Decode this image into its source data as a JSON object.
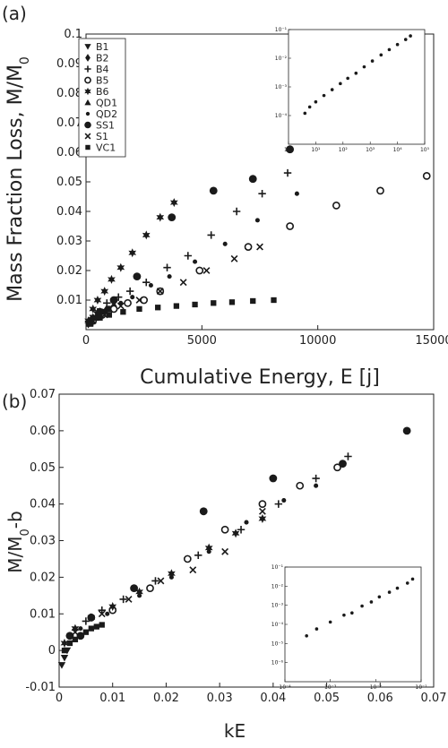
{
  "chart_data": [
    {
      "type": "scatter",
      "panel_label": "(a)",
      "xlabel": "Cumulative Energy, E [j]",
      "ylabel": "Mass Fraction Loss, M/M0",
      "ylabel_parts": {
        "main": "Mass Fraction Loss, M/M",
        "sub": "0"
      },
      "xlim": [
        0,
        15000
      ],
      "ylim": [
        0,
        0.1
      ],
      "xticks": [
        0,
        5000,
        10000,
        15000
      ],
      "xtick_labels": [
        "0",
        "5000",
        "10000",
        "15000"
      ],
      "yticks": [
        0.01,
        0.02,
        0.03,
        0.04,
        0.05,
        0.06,
        0.07,
        0.08,
        0.09,
        0.1
      ],
      "ytick_labels": [
        "0.01",
        "0.02",
        "0.03",
        "0.04",
        "0.05",
        "0.06",
        "0.07",
        "0.08",
        "0.09",
        "0.1"
      ],
      "legend_position": "top-left",
      "series": [
        {
          "name": "B1",
          "marker": "triangle-down",
          "x": [
            100,
            300,
            500,
            800,
            1100
          ],
          "y": [
            0.002,
            0.004,
            0.005,
            0.006,
            0.007
          ]
        },
        {
          "name": "B2",
          "marker": "diamond",
          "x": [
            100,
            300,
            600,
            900,
            1200
          ],
          "y": [
            0.002,
            0.004,
            0.006,
            0.007,
            0.008
          ]
        },
        {
          "name": "B4",
          "marker": "plus",
          "x": [
            200,
            500,
            900,
            1400,
            1900,
            2600,
            3500,
            4400,
            5400,
            6500,
            7600,
            8700
          ],
          "y": [
            0.003,
            0.006,
            0.009,
            0.011,
            0.013,
            0.016,
            0.021,
            0.025,
            0.032,
            0.04,
            0.046,
            0.053
          ]
        },
        {
          "name": "B5",
          "marker": "open-circle",
          "x": [
            300,
            700,
            1200,
            1800,
            2500,
            3200,
            4900,
            7000,
            8800,
            10800,
            12700,
            14700
          ],
          "y": [
            0.003,
            0.005,
            0.007,
            0.009,
            0.01,
            0.013,
            0.02,
            0.028,
            0.035,
            0.042,
            0.047,
            0.052
          ]
        },
        {
          "name": "B6",
          "marker": "star",
          "x": [
            100,
            300,
            500,
            800,
            1100,
            1500,
            2000,
            2600,
            3200,
            3800
          ],
          "y": [
            0.003,
            0.007,
            0.01,
            0.013,
            0.017,
            0.021,
            0.026,
            0.032,
            0.038,
            0.043
          ]
        },
        {
          "name": "QD1",
          "marker": "triangle-up",
          "x": [
            150,
            400,
            700,
            1000
          ],
          "y": [
            0.002,
            0.004,
            0.006,
            0.007
          ]
        },
        {
          "name": "QD2",
          "marker": "small-circle",
          "x": [
            500,
            1000,
            1500,
            2000,
            2800,
            3600,
            4700,
            6000,
            7400,
            9100
          ],
          "y": [
            0.004,
            0.007,
            0.009,
            0.011,
            0.015,
            0.018,
            0.023,
            0.029,
            0.037,
            0.046
          ]
        },
        {
          "name": "SS1",
          "marker": "filled-circle",
          "x": [
            200,
            600,
            1200,
            2200,
            3700,
            5500,
            7200,
            8800
          ],
          "y": [
            0.003,
            0.006,
            0.01,
            0.018,
            0.038,
            0.047,
            0.051,
            0.061
          ]
        },
        {
          "name": "S1",
          "marker": "cross",
          "x": [
            300,
            800,
            1500,
            2300,
            3200,
            4200,
            5200,
            6400,
            7500
          ],
          "y": [
            0.003,
            0.005,
            0.008,
            0.01,
            0.013,
            0.016,
            0.02,
            0.024,
            0.028
          ]
        },
        {
          "name": "VC1",
          "marker": "square",
          "x": [
            200,
            600,
            1000,
            1600,
            2300,
            3100,
            3900,
            4700,
            5500,
            6300,
            7200,
            8100
          ],
          "y": [
            0.002,
            0.004,
            0.005,
            0.006,
            0.007,
            0.0075,
            0.008,
            0.0085,
            0.009,
            0.0093,
            0.0097,
            0.01
          ]
        }
      ],
      "inset": {
        "xscale": "log",
        "yscale": "log",
        "xlim": [
          1,
          100000
        ],
        "ylim": [
          1e-05,
          0.1
        ],
        "xtick_labels": [
          "10⁰",
          "10¹",
          "10²",
          "10³",
          "10⁴",
          "10⁵"
        ],
        "ytick_labels": [
          "10⁻⁴",
          "10⁻³",
          "10⁻²",
          "10⁻¹"
        ],
        "x": [
          4,
          6,
          10,
          20,
          40,
          80,
          150,
          300,
          600,
          1200,
          2500,
          5000,
          10000,
          20000,
          30000
        ],
        "y": [
          0.00012,
          0.0002,
          0.0003,
          0.0005,
          0.0008,
          0.0013,
          0.002,
          0.003,
          0.005,
          0.008,
          0.013,
          0.02,
          0.03,
          0.045,
          0.06
        ]
      }
    },
    {
      "type": "scatter",
      "panel_label": "(b)",
      "xlabel": "kE",
      "ylabel": "M/M0-b",
      "ylabel_parts": {
        "main": "M/M",
        "sub": "0",
        "tail": "-b"
      },
      "xlim": [
        0,
        0.07
      ],
      "ylim": [
        -0.01,
        0.07
      ],
      "xticks": [
        0,
        0.01,
        0.02,
        0.03,
        0.04,
        0.05,
        0.06,
        0.07
      ],
      "xtick_labels": [
        "0",
        "0.01",
        "0.02",
        "0.03",
        "0.04",
        "0.05",
        "0.06",
        "0.07"
      ],
      "yticks": [
        -0.01,
        0,
        0.01,
        0.02,
        0.03,
        0.04,
        0.05,
        0.06,
        0.07
      ],
      "ytick_labels": [
        "-0.01",
        "0",
        "0.01",
        "0.02",
        "0.03",
        "0.04",
        "0.05",
        "0.06",
        "0.07"
      ],
      "series": [
        {
          "name": "B4",
          "marker": "plus",
          "x": [
            0.002,
            0.005,
            0.008,
            0.012,
            0.018,
            0.026,
            0.034,
            0.041,
            0.048,
            0.054
          ],
          "y": [
            0.004,
            0.008,
            0.011,
            0.014,
            0.019,
            0.026,
            0.033,
            0.04,
            0.047,
            0.053
          ]
        },
        {
          "name": "B5",
          "marker": "open-circle",
          "x": [
            0.004,
            0.01,
            0.017,
            0.024,
            0.031,
            0.038,
            0.045,
            0.052
          ],
          "y": [
            0.004,
            0.011,
            0.017,
            0.025,
            0.033,
            0.04,
            0.045,
            0.05
          ]
        },
        {
          "name": "B6",
          "marker": "star",
          "x": [
            0.001,
            0.003,
            0.006,
            0.01,
            0.015,
            0.021,
            0.028,
            0.033,
            0.038
          ],
          "y": [
            0.002,
            0.006,
            0.009,
            0.012,
            0.016,
            0.021,
            0.028,
            0.032,
            0.036
          ]
        },
        {
          "name": "QD2",
          "marker": "small-circle",
          "x": [
            0.004,
            0.009,
            0.015,
            0.021,
            0.028,
            0.035,
            0.042,
            0.048
          ],
          "y": [
            0.006,
            0.01,
            0.015,
            0.02,
            0.027,
            0.035,
            0.041,
            0.045
          ]
        },
        {
          "name": "SS1",
          "marker": "filled-circle",
          "x": [
            0.002,
            0.006,
            0.014,
            0.027,
            0.04,
            0.053,
            0.065
          ],
          "y": [
            0.004,
            0.009,
            0.017,
            0.038,
            0.047,
            0.051,
            0.06
          ]
        },
        {
          "name": "S1",
          "marker": "cross",
          "x": [
            0.003,
            0.008,
            0.013,
            0.019,
            0.025,
            0.031,
            0.038
          ],
          "y": [
            0.005,
            0.01,
            0.014,
            0.019,
            0.022,
            0.027,
            0.038
          ]
        },
        {
          "name": "VC1",
          "marker": "square",
          "x": [
            0.001,
            0.002,
            0.003,
            0.004,
            0.005,
            0.006,
            0.007,
            0.008
          ],
          "y": [
            0,
            0.002,
            0.003,
            0.004,
            0.005,
            0.006,
            0.0065,
            0.007
          ]
        },
        {
          "name": "B1",
          "marker": "triangle-down",
          "x": [
            0.0005,
            0.001,
            0.0015
          ],
          "y": [
            -0.004,
            -0.002,
            0
          ]
        }
      ],
      "inset": {
        "xscale": "log",
        "yscale": "log",
        "xlim": [
          0.0001,
          0.1
        ],
        "ylim": [
          1e-06,
          0.1
        ],
        "xtick_labels": [
          "10⁻⁴",
          "10⁻³",
          "10⁻²",
          "10⁻¹"
        ],
        "ytick_labels": [
          "10⁻⁶",
          "10⁻⁵",
          "10⁻⁴",
          "10⁻³",
          "10⁻²",
          "10⁻¹"
        ],
        "x": [
          0.0003,
          0.0005,
          0.001,
          0.002,
          0.003,
          0.005,
          0.008,
          0.012,
          0.02,
          0.03,
          0.05,
          0.065
        ],
        "y": [
          0.0001,
          0.0002,
          0.0004,
          0.0008,
          0.001,
          0.002,
          0.003,
          0.005,
          0.008,
          0.012,
          0.02,
          0.03
        ]
      }
    }
  ]
}
